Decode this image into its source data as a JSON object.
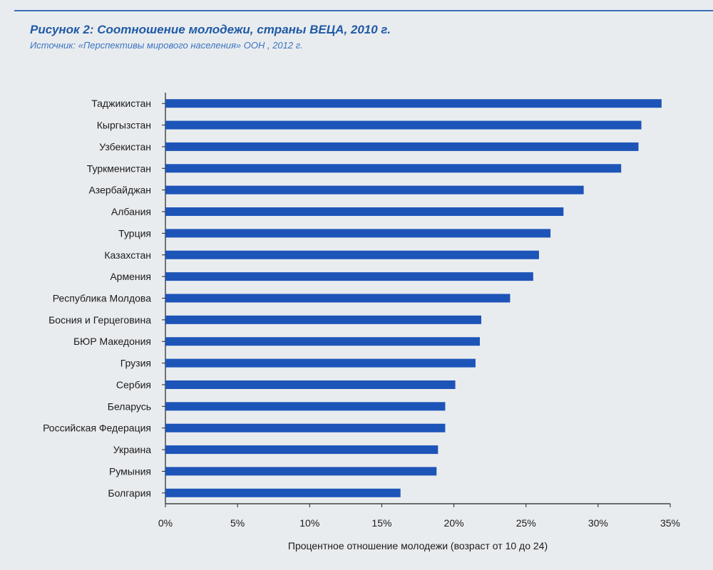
{
  "header": {
    "title": "Рисунок 2: Соотношение молодежи, страны ВЕЦА, 2010 г.",
    "source": "Источник: «Перспективы мирового населения» ООН , 2012 г."
  },
  "colors": {
    "bar": "#1d54b8",
    "title": "#1f5aa6",
    "rule": "#3a6fb5"
  },
  "chart_data": {
    "type": "bar",
    "orientation": "horizontal",
    "title": "Рисунок 2: Соотношение молодежи, страны ВЕЦА, 2010 г.",
    "xlabel": "Процентное отношение молодежи (возраст от 10 до 24)",
    "ylabel": "",
    "xlim": [
      0,
      35
    ],
    "xticks": [
      0,
      5,
      10,
      15,
      20,
      25,
      30,
      35
    ],
    "xtick_labels": [
      "0%",
      "5%",
      "10%",
      "15%",
      "20%",
      "25%",
      "30%",
      "35%"
    ],
    "grid": false,
    "categories": [
      "Таджикистан",
      "Кыргызстан",
      "Узбекистан",
      "Туркменистан",
      "Азербайджан",
      "Албания",
      "Турция",
      "Казахстан",
      "Армения",
      "Республика Молдова",
      "Босния и Герцеговина",
      "БЮР Македония",
      "Грузия",
      "Сербия",
      "Беларусь",
      "Российская Федерация",
      "Украина",
      "Румыния",
      "Болгария"
    ],
    "values": [
      34.4,
      33.0,
      32.8,
      31.6,
      29.0,
      27.6,
      26.7,
      25.9,
      25.5,
      23.9,
      21.9,
      21.8,
      21.5,
      20.1,
      19.4,
      19.4,
      18.9,
      18.8,
      16.3
    ]
  }
}
